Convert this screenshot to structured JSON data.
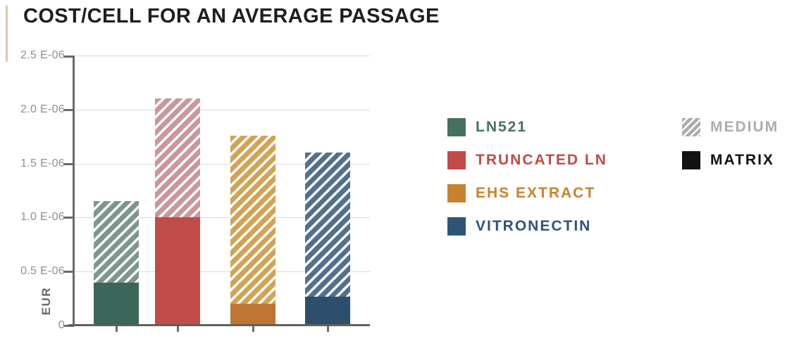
{
  "page": {
    "title": "COST/CELL FOR AN AVERAGE PASSAGE"
  },
  "chart_data": {
    "type": "bar",
    "stacked": true,
    "title": "COST/CELL FOR AN AVERAGE PASSAGE",
    "ylabel": "EUR",
    "unit": "EUR x 1E-06",
    "categories": [
      "LN521",
      "TRUNCATED LN",
      "EHS EXTRACT",
      "VITRONECTIN"
    ],
    "series": [
      {
        "name": "MATRIX",
        "values": [
          0.4,
          1.0,
          0.2,
          0.27
        ]
      },
      {
        "name": "MEDIUM",
        "values": [
          0.75,
          1.1,
          1.56,
          1.33
        ]
      }
    ],
    "totals": [
      1.15,
      2.1,
      1.76,
      1.6
    ],
    "ylim": [
      0,
      2.5
    ],
    "y_ticks": [
      "2.5 E-06",
      "2.0 E-06",
      "1.5 E-06",
      "1.0 E-06",
      "0.5 E-06",
      "0"
    ],
    "grid": true,
    "legend_position": "right",
    "colors": [
      {
        "solid": "#3C665A",
        "hatch": "#7E978C"
      },
      {
        "solid": "#C14B48",
        "hatch": "#C9979C"
      },
      {
        "solid": "#BE7534",
        "hatch": "#D2A355"
      },
      {
        "solid": "#2D4F6B",
        "hatch": "#52708E"
      }
    ],
    "hatch_stripe_color": "#FFFFFF"
  },
  "legend": {
    "categories": [
      {
        "label": "LN521",
        "color": "#47715F"
      },
      {
        "label": "TRUNCATED LN",
        "color": "#C04B48"
      },
      {
        "label": "EHS EXTRACT",
        "color": "#C8822F"
      },
      {
        "label": "VITRONECTIN",
        "color": "#2F5478"
      }
    ],
    "components": [
      {
        "label": "MEDIUM",
        "swatch_style": "hatched",
        "color": "#ACACAC"
      },
      {
        "label": "MATRIX",
        "swatch_style": "solid",
        "color": "#121212"
      }
    ]
  },
  "style": {
    "accent_line_color": "#D9CAA6",
    "axis_color": "#6A6A6A",
    "grid_color": "#DADADA",
    "tick_label_color": "#8F8F8F",
    "title_color": "#1F1F1D"
  }
}
